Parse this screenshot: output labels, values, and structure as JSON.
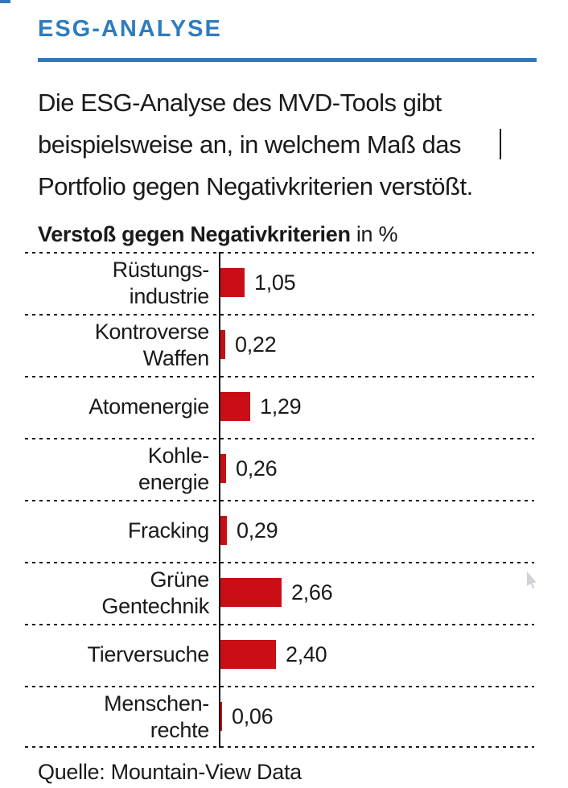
{
  "header": {
    "title": "ESG-ANALYSE"
  },
  "intro": {
    "lines": [
      "Die ESG-Analyse des MVD-Tools gibt",
      "beispielsweise an, in welchem Maß das",
      "Portfolio gegen Negativkriterien verstößt."
    ]
  },
  "chart_data": {
    "type": "bar",
    "orientation": "horizontal",
    "title_bold": "Verstoß gegen Negativkriterien",
    "title_suffix": " in %",
    "categories": [
      [
        "Rüstungs-",
        "industrie"
      ],
      [
        "Kontroverse",
        "Waffen"
      ],
      [
        "Atomenergie"
      ],
      [
        "Kohle-",
        "energie"
      ],
      [
        "Fracking"
      ],
      [
        "Grüne",
        "Gentechnik"
      ],
      [
        "Tierversuche"
      ],
      [
        "Menschen-",
        "rechte"
      ]
    ],
    "values": [
      1.05,
      0.22,
      1.29,
      0.26,
      0.29,
      2.66,
      2.4,
      0.06
    ],
    "value_labels": [
      "1,05",
      "0,22",
      "1,29",
      "0,26",
      "0,29",
      "2,66",
      "2,40",
      "0,06"
    ],
    "xlim": [
      0,
      3
    ],
    "unit": "%",
    "bar_color": "#c90f15",
    "grid": "dashed horizontal row separators",
    "legend": "none"
  },
  "source": {
    "label": "Quelle: Mountain-View Data"
  },
  "colors": {
    "accent_blue": "#3279bc",
    "heading_blue": "#2d7cbe",
    "bar_red": "#c90f15",
    "text": "#1a1a1a"
  }
}
